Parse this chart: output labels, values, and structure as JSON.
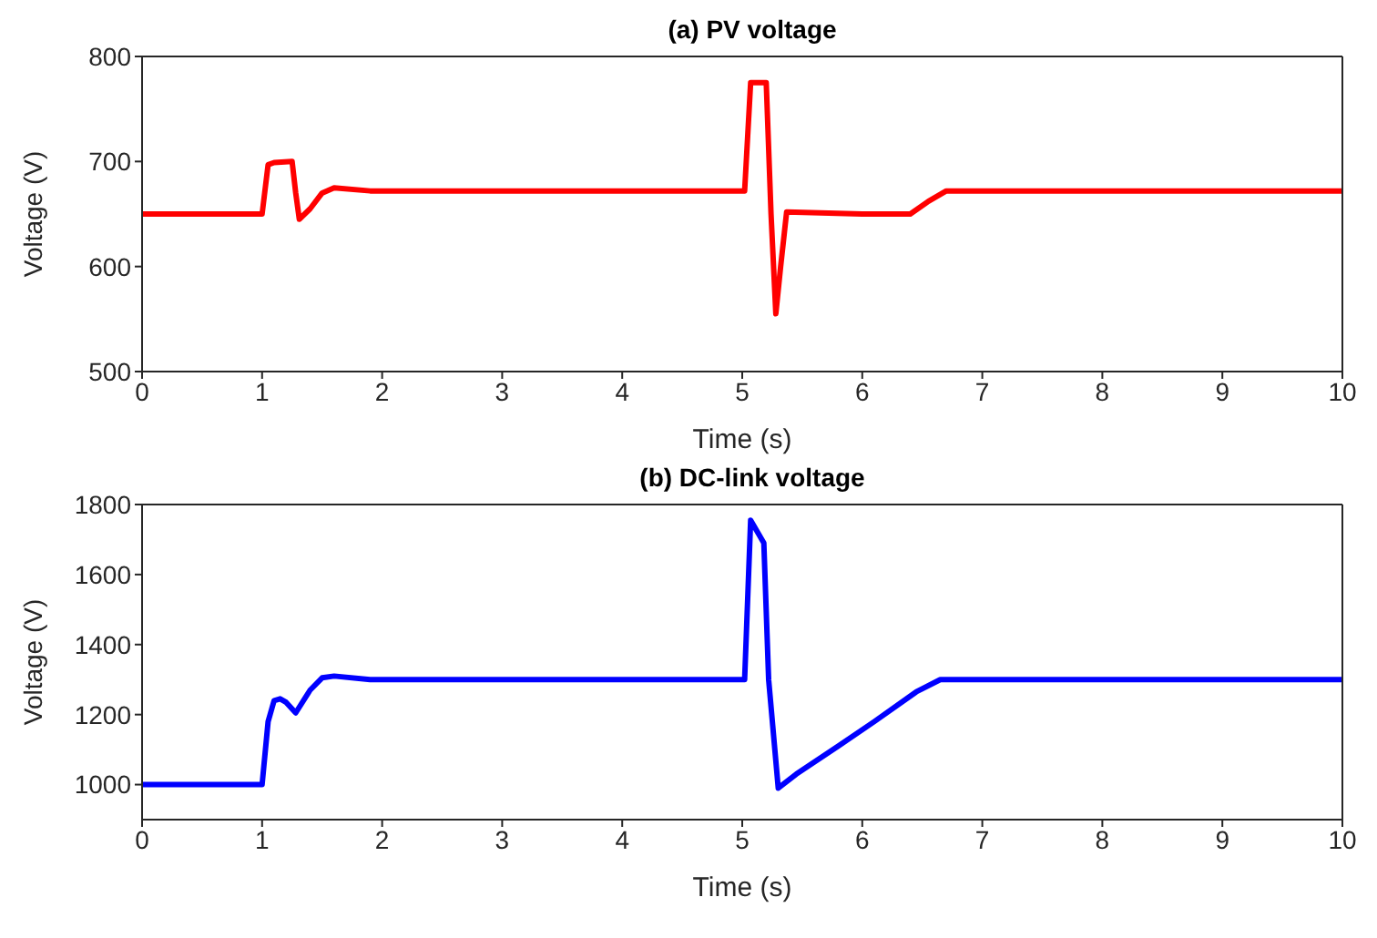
{
  "chart_data": [
    {
      "type": "line",
      "title": "(a) PV voltage",
      "xlabel": "Time (s)",
      "ylabel": "Voltage (V)",
      "xlim": [
        0,
        10
      ],
      "xticks": [
        0,
        1,
        2,
        3,
        4,
        5,
        6,
        7,
        8,
        9,
        10
      ],
      "ylim": [
        500,
        800
      ],
      "yticks": [
        500,
        600,
        700,
        800
      ],
      "marker": "none",
      "line_style": "solid",
      "series": [
        {
          "color": "#ff0000",
          "x": [
            0,
            0.5,
            1.0,
            1.05,
            1.1,
            1.25,
            1.28,
            1.31,
            1.4,
            1.5,
            1.6,
            1.9,
            3,
            5.02,
            5.07,
            5.2,
            5.24,
            5.28,
            5.32,
            5.37,
            6.0,
            6.4,
            6.55,
            6.7,
            8,
            10
          ],
          "values": [
            650,
            650,
            650,
            697,
            699,
            700,
            670,
            645,
            655,
            670,
            675,
            672,
            672,
            672,
            775,
            775,
            650,
            555,
            600,
            652,
            650,
            650,
            662,
            672,
            672,
            672
          ]
        }
      ]
    },
    {
      "type": "line",
      "title": "(b) DC-link  voltage",
      "xlabel": "Time (s)",
      "ylabel": "Voltage (V)",
      "xlim": [
        0,
        10
      ],
      "xticks": [
        0,
        1,
        2,
        3,
        4,
        5,
        6,
        7,
        8,
        9,
        10
      ],
      "ylim": [
        900,
        1800
      ],
      "yticks": [
        1000,
        1200,
        1400,
        1600,
        1800
      ],
      "marker": "none",
      "line_style": "solid",
      "series": [
        {
          "color": "#0000ff",
          "x": [
            0,
            0.5,
            1.0,
            1.05,
            1.1,
            1.15,
            1.2,
            1.28,
            1.4,
            1.5,
            1.6,
            1.9,
            3,
            5.02,
            5.07,
            5.18,
            5.22,
            5.3,
            5.45,
            5.8,
            6.1,
            6.45,
            6.65,
            8,
            10
          ],
          "values": [
            1000,
            1000,
            1000,
            1180,
            1240,
            1245,
            1235,
            1205,
            1270,
            1305,
            1310,
            1300,
            1300,
            1300,
            1755,
            1690,
            1300,
            990,
            1030,
            1110,
            1180,
            1265,
            1300,
            1300,
            1300
          ]
        }
      ]
    }
  ]
}
